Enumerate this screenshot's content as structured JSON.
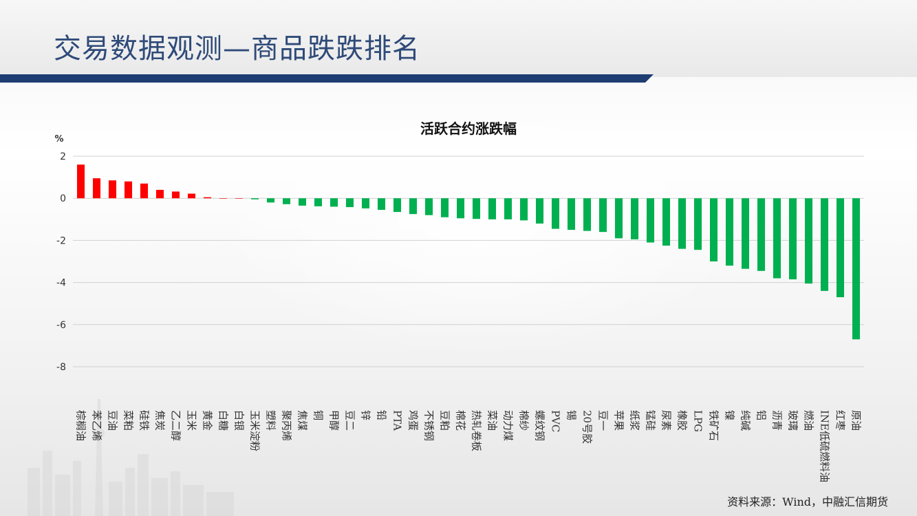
{
  "page": {
    "title": "交易数据观测—商品跌跌排名",
    "source": "资料来源：Wind，中融汇信期货"
  },
  "colors": {
    "title": "#2e4a78",
    "bar_bar": "#1f3d73",
    "positive": "#ff0000",
    "negative": "#00b050",
    "grid": "#d0d0d0"
  },
  "chart_data": {
    "type": "bar",
    "title": "活跃合约涨跌幅",
    "ylabel": "%",
    "ylim": [
      -8,
      2
    ],
    "yticks": [
      2,
      0,
      -2,
      -4,
      -6,
      -8
    ],
    "grid": true,
    "legend": "none",
    "categories": [
      "棕榈油",
      "苯乙烯",
      "豆油",
      "菜粕",
      "硅铁",
      "焦炭",
      "乙二醇",
      "玉米",
      "黄金",
      "白糖",
      "白银",
      "玉米淀粉",
      "塑料",
      "聚丙烯",
      "焦煤",
      "铜",
      "甲醇",
      "豆二",
      "锌",
      "铅",
      "PTA",
      "鸡蛋",
      "不锈钢",
      "豆粕",
      "棉花",
      "热轧卷板",
      "菜油",
      "动力煤",
      "棉纱",
      "螺纹钢",
      "PVC",
      "锡",
      "20号胶",
      "豆一",
      "苹果",
      "纸浆",
      "锰硅",
      "尿素",
      "橡胶",
      "LPG",
      "铁矿石",
      "镍",
      "纯碱",
      "铝",
      "沥青",
      "玻璃",
      "燃油",
      "INE低硫燃料油",
      "红枣",
      "原油"
    ],
    "values": [
      1.6,
      0.95,
      0.85,
      0.8,
      0.7,
      0.4,
      0.32,
      0.22,
      0.05,
      0.0,
      0.0,
      -0.05,
      -0.2,
      -0.28,
      -0.35,
      -0.38,
      -0.4,
      -0.42,
      -0.48,
      -0.55,
      -0.65,
      -0.75,
      -0.8,
      -0.9,
      -0.95,
      -0.98,
      -1.0,
      -1.0,
      -1.05,
      -1.2,
      -1.45,
      -1.5,
      -1.55,
      -1.6,
      -1.9,
      -1.95,
      -2.1,
      -2.25,
      -2.4,
      -2.45,
      -3.0,
      -3.2,
      -3.35,
      -3.45,
      -3.8,
      -3.85,
      -4.05,
      -4.4,
      -4.7,
      -6.7
    ]
  }
}
